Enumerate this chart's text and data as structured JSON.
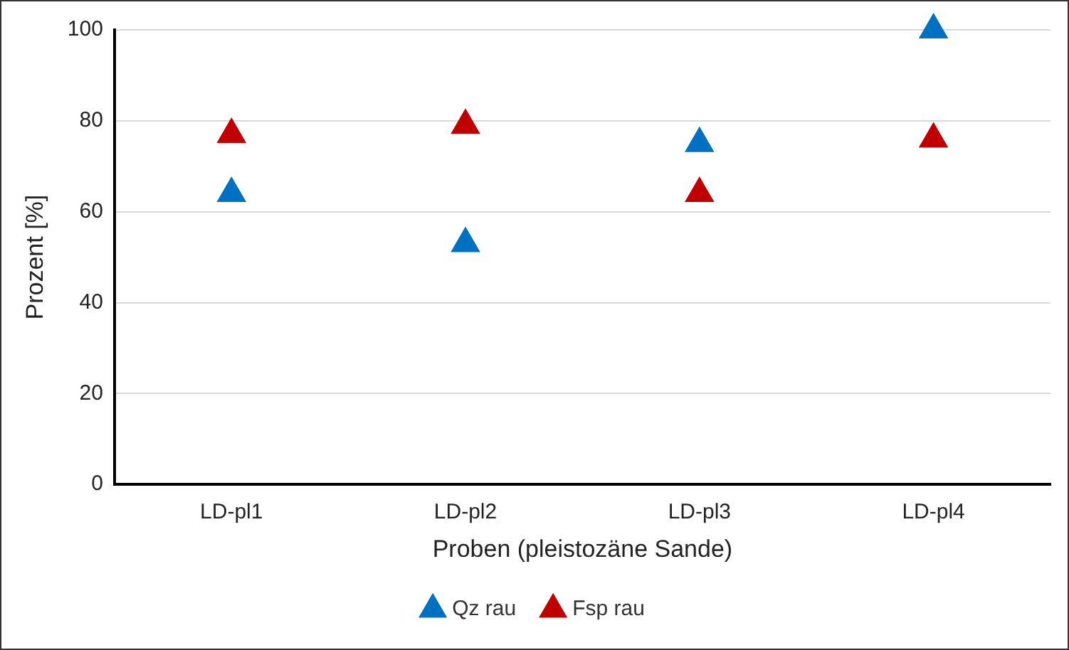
{
  "chart_data": {
    "type": "scatter",
    "xlabel": "Proben (pleistozäne Sande)",
    "ylabel": "Prozent [%]",
    "categories": [
      "LD-pl1",
      "LD-pl2",
      "LD-pl3",
      "LD-pl4"
    ],
    "series": [
      {
        "name": "Qz rau",
        "color": "#0070c0",
        "values": [
          64,
          53,
          75,
          100
        ]
      },
      {
        "name": "Fsp rau",
        "color": "#c00000",
        "values": [
          77,
          79,
          64,
          76
        ]
      }
    ],
    "ylim": [
      0,
      100
    ],
    "yticks": [
      0,
      20,
      40,
      60,
      80,
      100
    ],
    "grid": "y",
    "legend": "bottom",
    "marker": "triangle"
  }
}
